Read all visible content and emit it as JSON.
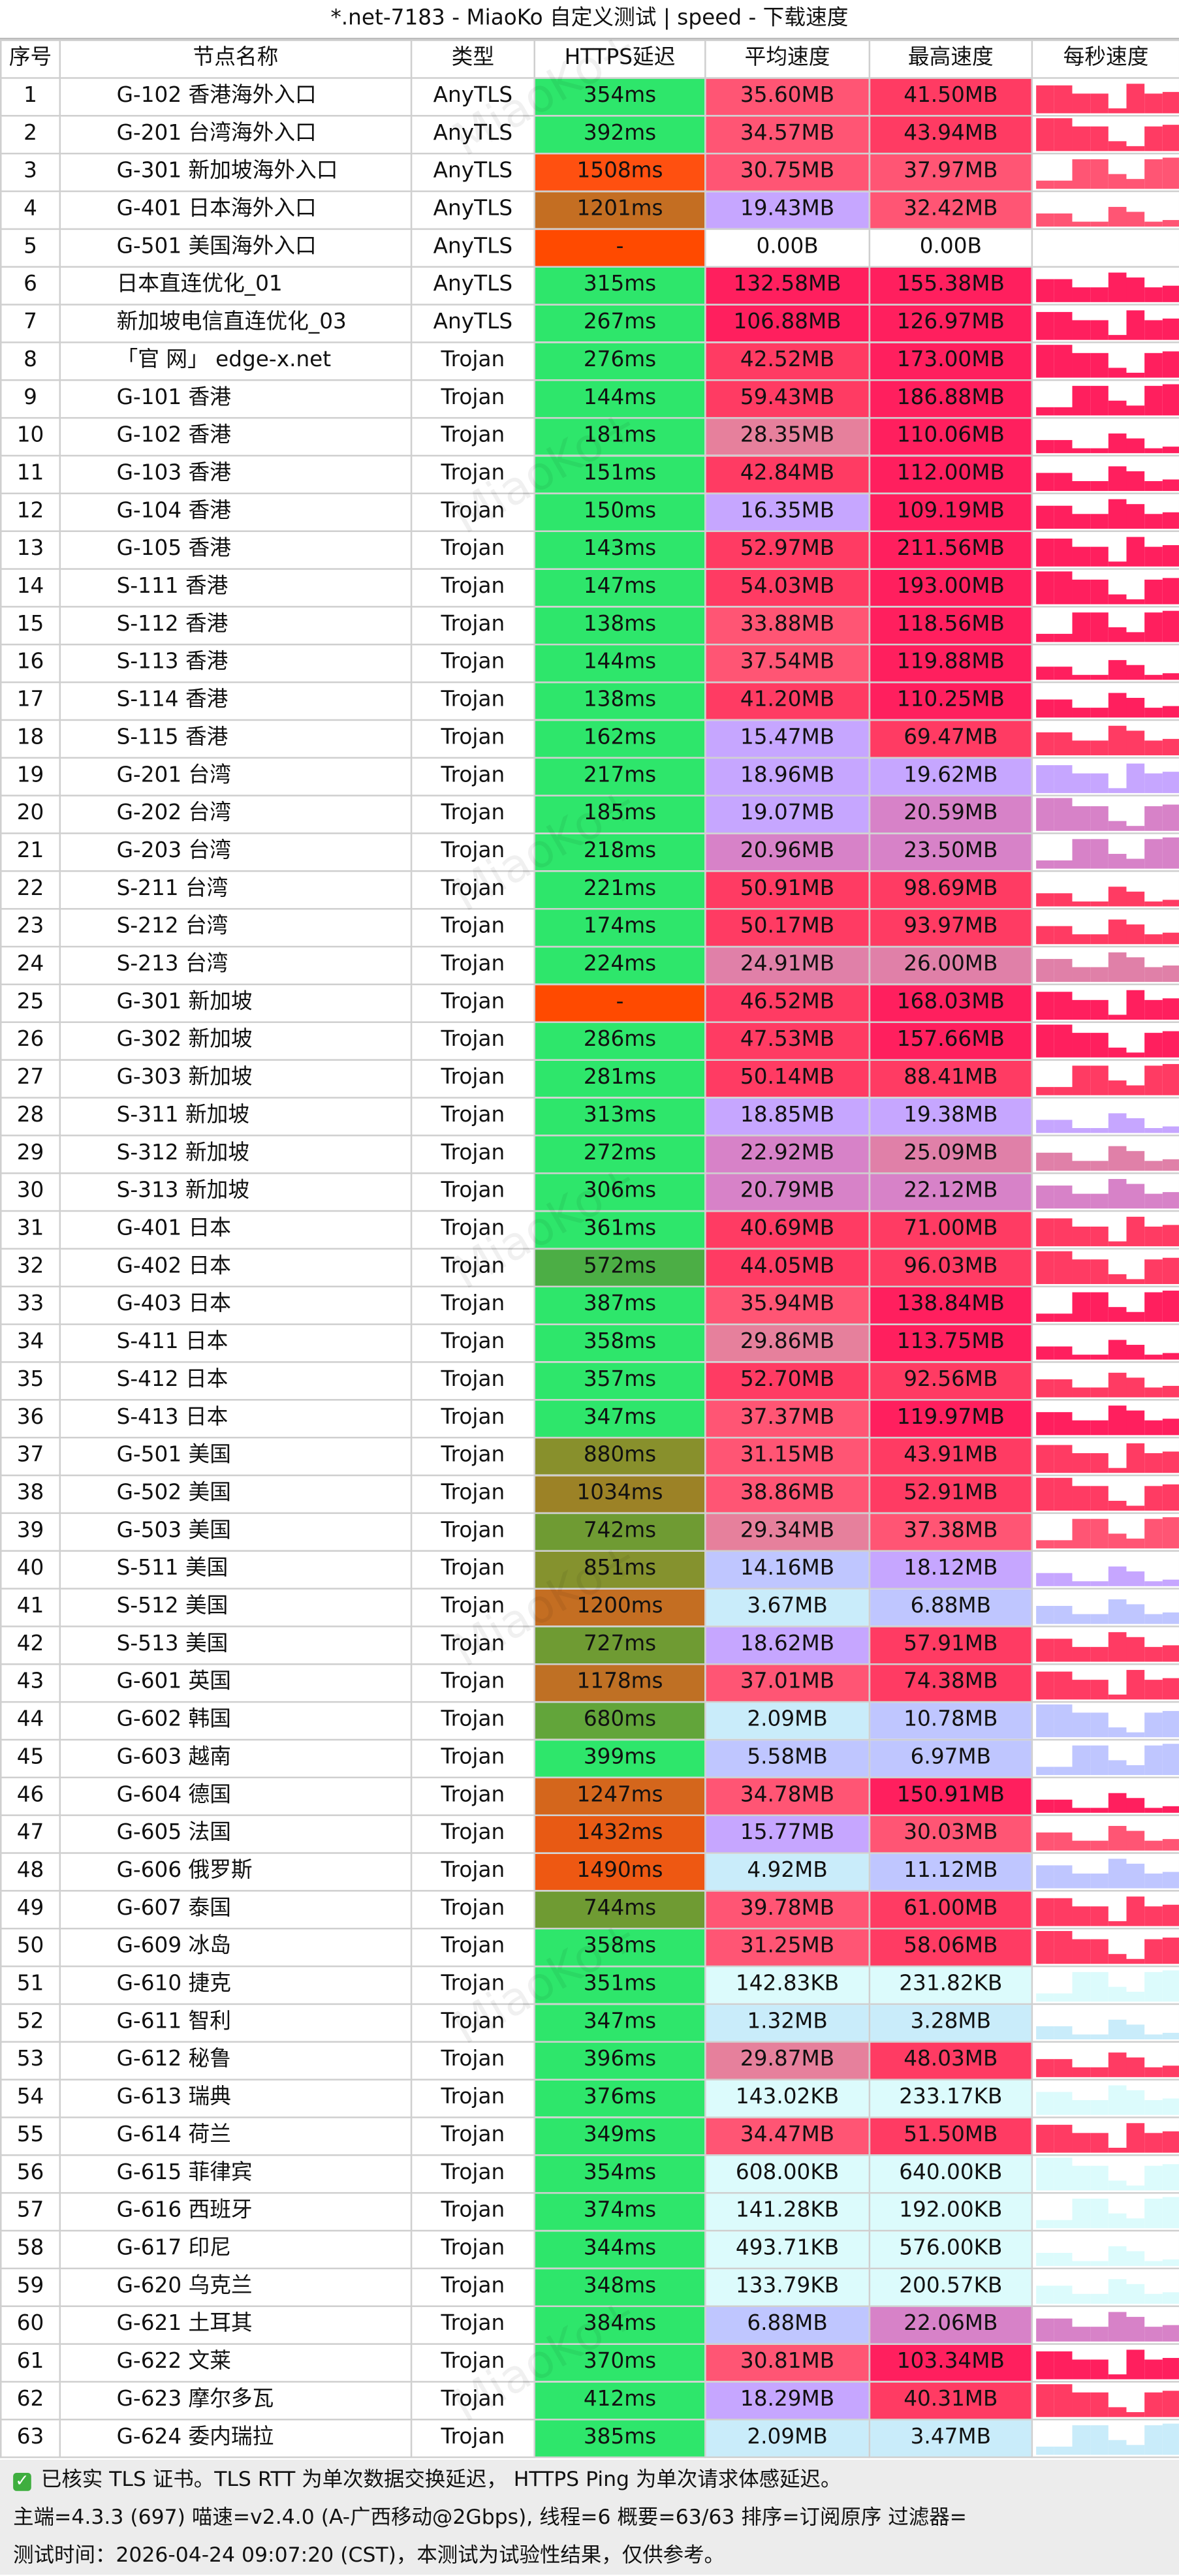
{
  "title": "*.net-7183 - MiaoKo 自定义测试 | speed - 下载速度",
  "watermark": "MiaoKo+",
  "table": {
    "headers": [
      "序号",
      "节点名称",
      "类型",
      "HTTPS延迟",
      "平均速度",
      "最高速度",
      "每秒速度"
    ],
    "rows": [
      [
        "1",
        "G-102 香港海外入口",
        "AnyTLS",
        "354ms",
        "35.60MB",
        "41.50MB",
        "#2ee66b",
        "#ff5574",
        "#ff3b63"
      ],
      [
        "2",
        "G-201 台湾海外入口",
        "AnyTLS",
        "392ms",
        "34.57MB",
        "43.94MB",
        "#2ee66b",
        "#ff5574",
        "#ff3b63"
      ],
      [
        "3",
        "G-301 新加坡海外入口",
        "AnyTLS",
        "1508ms",
        "30.75MB",
        "37.97MB",
        "#ff5010",
        "#ff5574",
        "#ff5574"
      ],
      [
        "4",
        "G-401 日本海外入口",
        "AnyTLS",
        "1201ms",
        "19.43MB",
        "32.42MB",
        "#c46e22",
        "#c6a6ff",
        "#ff5574"
      ],
      [
        "5",
        "G-501 美国海外入口",
        "AnyTLS",
        "-",
        "0.00B",
        "0.00B",
        "#ff4a00",
        "#ffffff",
        "#ffffff"
      ],
      [
        "6",
        "日本直连优化_01",
        "AnyTLS",
        "315ms",
        "132.58MB",
        "155.38MB",
        "#2ee66b",
        "#ff1f5e",
        "#ff1f5e"
      ],
      [
        "7",
        "新加坡电信直连优化_03",
        "AnyTLS",
        "267ms",
        "106.88MB",
        "126.97MB",
        "#2ee66b",
        "#ff1f5e",
        "#ff1f5e"
      ],
      [
        "8",
        "「官 网」 edge-x.net",
        "Trojan",
        "276ms",
        "42.52MB",
        "173.00MB",
        "#2ee66b",
        "#ff3b63",
        "#ff1f5e"
      ],
      [
        "9",
        "G-101 香港",
        "Trojan",
        "144ms",
        "59.43MB",
        "186.88MB",
        "#2ee66b",
        "#ff3b63",
        "#ff1f5e"
      ],
      [
        "10",
        "G-102 香港",
        "Trojan",
        "181ms",
        "28.35MB",
        "110.06MB",
        "#2ee66b",
        "#e6809c",
        "#ff1f5e"
      ],
      [
        "11",
        "G-103 香港",
        "Trojan",
        "151ms",
        "42.84MB",
        "112.00MB",
        "#2ee66b",
        "#ff3b63",
        "#ff1f5e"
      ],
      [
        "12",
        "G-104 香港",
        "Trojan",
        "150ms",
        "16.35MB",
        "109.19MB",
        "#2ee66b",
        "#c6a6ff",
        "#ff1f5e"
      ],
      [
        "13",
        "G-105 香港",
        "Trojan",
        "143ms",
        "52.97MB",
        "211.56MB",
        "#2ee66b",
        "#ff3b63",
        "#ff1f5e"
      ],
      [
        "14",
        "S-111 香港",
        "Trojan",
        "147ms",
        "54.03MB",
        "193.00MB",
        "#2ee66b",
        "#ff3b63",
        "#ff1f5e"
      ],
      [
        "15",
        "S-112 香港",
        "Trojan",
        "138ms",
        "33.88MB",
        "118.56MB",
        "#2ee66b",
        "#ff5574",
        "#ff1f5e"
      ],
      [
        "16",
        "S-113 香港",
        "Trojan",
        "144ms",
        "37.54MB",
        "119.88MB",
        "#2ee66b",
        "#ff5574",
        "#ff1f5e"
      ],
      [
        "17",
        "S-114 香港",
        "Trojan",
        "138ms",
        "41.20MB",
        "110.25MB",
        "#2ee66b",
        "#ff3b63",
        "#ff1f5e"
      ],
      [
        "18",
        "S-115 香港",
        "Trojan",
        "162ms",
        "15.47MB",
        "69.47MB",
        "#2ee66b",
        "#c6a6ff",
        "#ff3b63"
      ],
      [
        "19",
        "G-201 台湾",
        "Trojan",
        "217ms",
        "18.96MB",
        "19.62MB",
        "#2ee66b",
        "#c6a6ff",
        "#c6a6ff"
      ],
      [
        "20",
        "G-202 台湾",
        "Trojan",
        "185ms",
        "19.07MB",
        "20.59MB",
        "#2ee66b",
        "#c6a6ff",
        "#d782c8"
      ],
      [
        "21",
        "G-203 台湾",
        "Trojan",
        "218ms",
        "20.96MB",
        "23.50MB",
        "#2ee66b",
        "#d782c8",
        "#d782c8"
      ],
      [
        "22",
        "S-211 台湾",
        "Trojan",
        "221ms",
        "50.91MB",
        "98.69MB",
        "#2ee66b",
        "#ff3b63",
        "#ff3b63"
      ],
      [
        "23",
        "S-212 台湾",
        "Trojan",
        "174ms",
        "50.17MB",
        "93.97MB",
        "#2ee66b",
        "#ff3b63",
        "#ff3b63"
      ],
      [
        "24",
        "S-213 台湾",
        "Trojan",
        "224ms",
        "24.91MB",
        "26.00MB",
        "#2ee66b",
        "#e080a8",
        "#e080a8"
      ],
      [
        "25",
        "G-301 新加坡",
        "Trojan",
        "-",
        "46.52MB",
        "168.03MB",
        "#ff4a00",
        "#ff3b63",
        "#ff1f5e"
      ],
      [
        "26",
        "G-302 新加坡",
        "Trojan",
        "286ms",
        "47.53MB",
        "157.66MB",
        "#2ee66b",
        "#ff3b63",
        "#ff1f5e"
      ],
      [
        "27",
        "G-303 新加坡",
        "Trojan",
        "281ms",
        "50.14MB",
        "88.41MB",
        "#2ee66b",
        "#ff3b63",
        "#ff3b63"
      ],
      [
        "28",
        "S-311 新加坡",
        "Trojan",
        "313ms",
        "18.85MB",
        "19.38MB",
        "#2ee66b",
        "#c6a6ff",
        "#c6a6ff"
      ],
      [
        "29",
        "S-312 新加坡",
        "Trojan",
        "272ms",
        "22.92MB",
        "25.09MB",
        "#2ee66b",
        "#d782c8",
        "#e080a8"
      ],
      [
        "30",
        "S-313 新加坡",
        "Trojan",
        "306ms",
        "20.79MB",
        "22.12MB",
        "#2ee66b",
        "#d782c8",
        "#d782c8"
      ],
      [
        "31",
        "G-401 日本",
        "Trojan",
        "361ms",
        "40.69MB",
        "71.00MB",
        "#2ee66b",
        "#ff3b63",
        "#ff3b63"
      ],
      [
        "32",
        "G-402 日本",
        "Trojan",
        "572ms",
        "44.05MB",
        "96.03MB",
        "#4cae45",
        "#ff3b63",
        "#ff3b63"
      ],
      [
        "33",
        "G-403 日本",
        "Trojan",
        "387ms",
        "35.94MB",
        "138.84MB",
        "#2ee66b",
        "#ff5574",
        "#ff1f5e"
      ],
      [
        "34",
        "S-411 日本",
        "Trojan",
        "358ms",
        "29.86MB",
        "113.75MB",
        "#2ee66b",
        "#e6809c",
        "#ff1f5e"
      ],
      [
        "35",
        "S-412 日本",
        "Trojan",
        "357ms",
        "52.70MB",
        "92.56MB",
        "#2ee66b",
        "#ff3b63",
        "#ff3b63"
      ],
      [
        "36",
        "S-413 日本",
        "Trojan",
        "347ms",
        "37.37MB",
        "119.97MB",
        "#2ee66b",
        "#ff5574",
        "#ff1f5e"
      ],
      [
        "37",
        "G-501 美国",
        "Trojan",
        "880ms",
        "31.15MB",
        "43.91MB",
        "#88902c",
        "#ff5574",
        "#ff3b63"
      ],
      [
        "38",
        "G-502 美国",
        "Trojan",
        "1034ms",
        "38.86MB",
        "52.91MB",
        "#9c8226",
        "#ff5574",
        "#ff3b63"
      ],
      [
        "39",
        "G-503 美国",
        "Trojan",
        "742ms",
        "29.34MB",
        "37.38MB",
        "#6f9b33",
        "#e6809c",
        "#ff5574"
      ],
      [
        "40",
        "S-511 美国",
        "Trojan",
        "851ms",
        "14.16MB",
        "18.12MB",
        "#85922e",
        "#bfc6ff",
        "#c6a6ff"
      ],
      [
        "41",
        "S-512 美国",
        "Trojan",
        "1200ms",
        "3.67MB",
        "6.88MB",
        "#c46e22",
        "#c9ecfa",
        "#bfc6ff"
      ],
      [
        "42",
        "S-513 美国",
        "Trojan",
        "727ms",
        "18.62MB",
        "57.91MB",
        "#6f9b33",
        "#c6a6ff",
        "#ff3b63"
      ],
      [
        "43",
        "G-601 英国",
        "Trojan",
        "1178ms",
        "37.01MB",
        "74.38MB",
        "#bf7024",
        "#ff5574",
        "#ff3b63"
      ],
      [
        "44",
        "G-602 韩国",
        "Trojan",
        "680ms",
        "2.09MB",
        "10.78MB",
        "#62a53a",
        "#c9ecfa",
        "#bfc6ff"
      ],
      [
        "45",
        "G-603 越南",
        "Trojan",
        "399ms",
        "5.58MB",
        "6.97MB",
        "#2ee66b",
        "#bfc6ff",
        "#bfc6ff"
      ],
      [
        "46",
        "G-604 德国",
        "Trojan",
        "1247ms",
        "34.78MB",
        "150.91MB",
        "#d4661c",
        "#ff5574",
        "#ff1f5e"
      ],
      [
        "47",
        "G-605 法国",
        "Trojan",
        "1432ms",
        "15.77MB",
        "30.03MB",
        "#e85a14",
        "#c6a6ff",
        "#ff5574"
      ],
      [
        "48",
        "G-606 俄罗斯",
        "Trojan",
        "1490ms",
        "4.92MB",
        "11.12MB",
        "#ee5812",
        "#c9ecfa",
        "#bfc6ff"
      ],
      [
        "49",
        "G-607 泰国",
        "Trojan",
        "744ms",
        "39.78MB",
        "61.00MB",
        "#6f9b33",
        "#ff5574",
        "#ff3b63"
      ],
      [
        "50",
        "G-609 冰岛",
        "Trojan",
        "358ms",
        "31.25MB",
        "58.06MB",
        "#2ee66b",
        "#ff5574",
        "#ff3b63"
      ],
      [
        "51",
        "G-610 捷克",
        "Trojan",
        "351ms",
        "142.83KB",
        "231.82KB",
        "#2ee66b",
        "#dcfbfc",
        "#dcfbfc"
      ],
      [
        "52",
        "G-611 智利",
        "Trojan",
        "347ms",
        "1.32MB",
        "3.28MB",
        "#2ee66b",
        "#c9ecfa",
        "#c9ecfa"
      ],
      [
        "53",
        "G-612 秘鲁",
        "Trojan",
        "396ms",
        "29.87MB",
        "48.03MB",
        "#2ee66b",
        "#e6809c",
        "#ff3b63"
      ],
      [
        "54",
        "G-613 瑞典",
        "Trojan",
        "376ms",
        "143.02KB",
        "233.17KB",
        "#2ee66b",
        "#dcfbfc",
        "#dcfbfc"
      ],
      [
        "55",
        "G-614 荷兰",
        "Trojan",
        "349ms",
        "34.47MB",
        "51.50MB",
        "#2ee66b",
        "#ff5574",
        "#ff3b63"
      ],
      [
        "56",
        "G-615 菲律宾",
        "Trojan",
        "354ms",
        "608.00KB",
        "640.00KB",
        "#2ee66b",
        "#dcfbfc",
        "#dcfbfc"
      ],
      [
        "57",
        "G-616 西班牙",
        "Trojan",
        "374ms",
        "141.28KB",
        "192.00KB",
        "#2ee66b",
        "#dcfbfc",
        "#dcfbfc"
      ],
      [
        "58",
        "G-617 印尼",
        "Trojan",
        "344ms",
        "493.71KB",
        "576.00KB",
        "#2ee66b",
        "#dcfbfc",
        "#dcfbfc"
      ],
      [
        "59",
        "G-620 乌克兰",
        "Trojan",
        "348ms",
        "133.79KB",
        "200.57KB",
        "#2ee66b",
        "#dcfbfc",
        "#dcfbfc"
      ],
      [
        "60",
        "G-621 土耳其",
        "Trojan",
        "384ms",
        "6.88MB",
        "22.06MB",
        "#2ee66b",
        "#bfc6ff",
        "#d782c8"
      ],
      [
        "61",
        "G-622 文莱",
        "Trojan",
        "370ms",
        "30.81MB",
        "103.34MB",
        "#2ee66b",
        "#ff5574",
        "#ff1f5e"
      ],
      [
        "62",
        "G-623 摩尔多瓦",
        "Trojan",
        "412ms",
        "18.29MB",
        "40.31MB",
        "#2ee66b",
        "#c6a6ff",
        "#ff3b63"
      ],
      [
        "63",
        "G-624 委内瑞拉",
        "Trojan",
        "385ms",
        "2.09MB",
        "3.47MB",
        "#2ee66b",
        "#c9ecfa",
        "#c9ecfa"
      ]
    ]
  },
  "footer": [
    "已核实 TLS 证书。TLS RTT 为单次数据交换延迟， HTTPS Ping 为单次请求体感延迟。",
    "主端=4.3.3 (697) 喵速=v2.4.0 (A-广西移动@2Gbps), 线程=6 概要=63/63 排序=订阅原序 过滤器=",
    "测试时间：2026-04-24 09:07:20 (CST)，本测试为试验性结果，仅供参考。"
  ]
}
